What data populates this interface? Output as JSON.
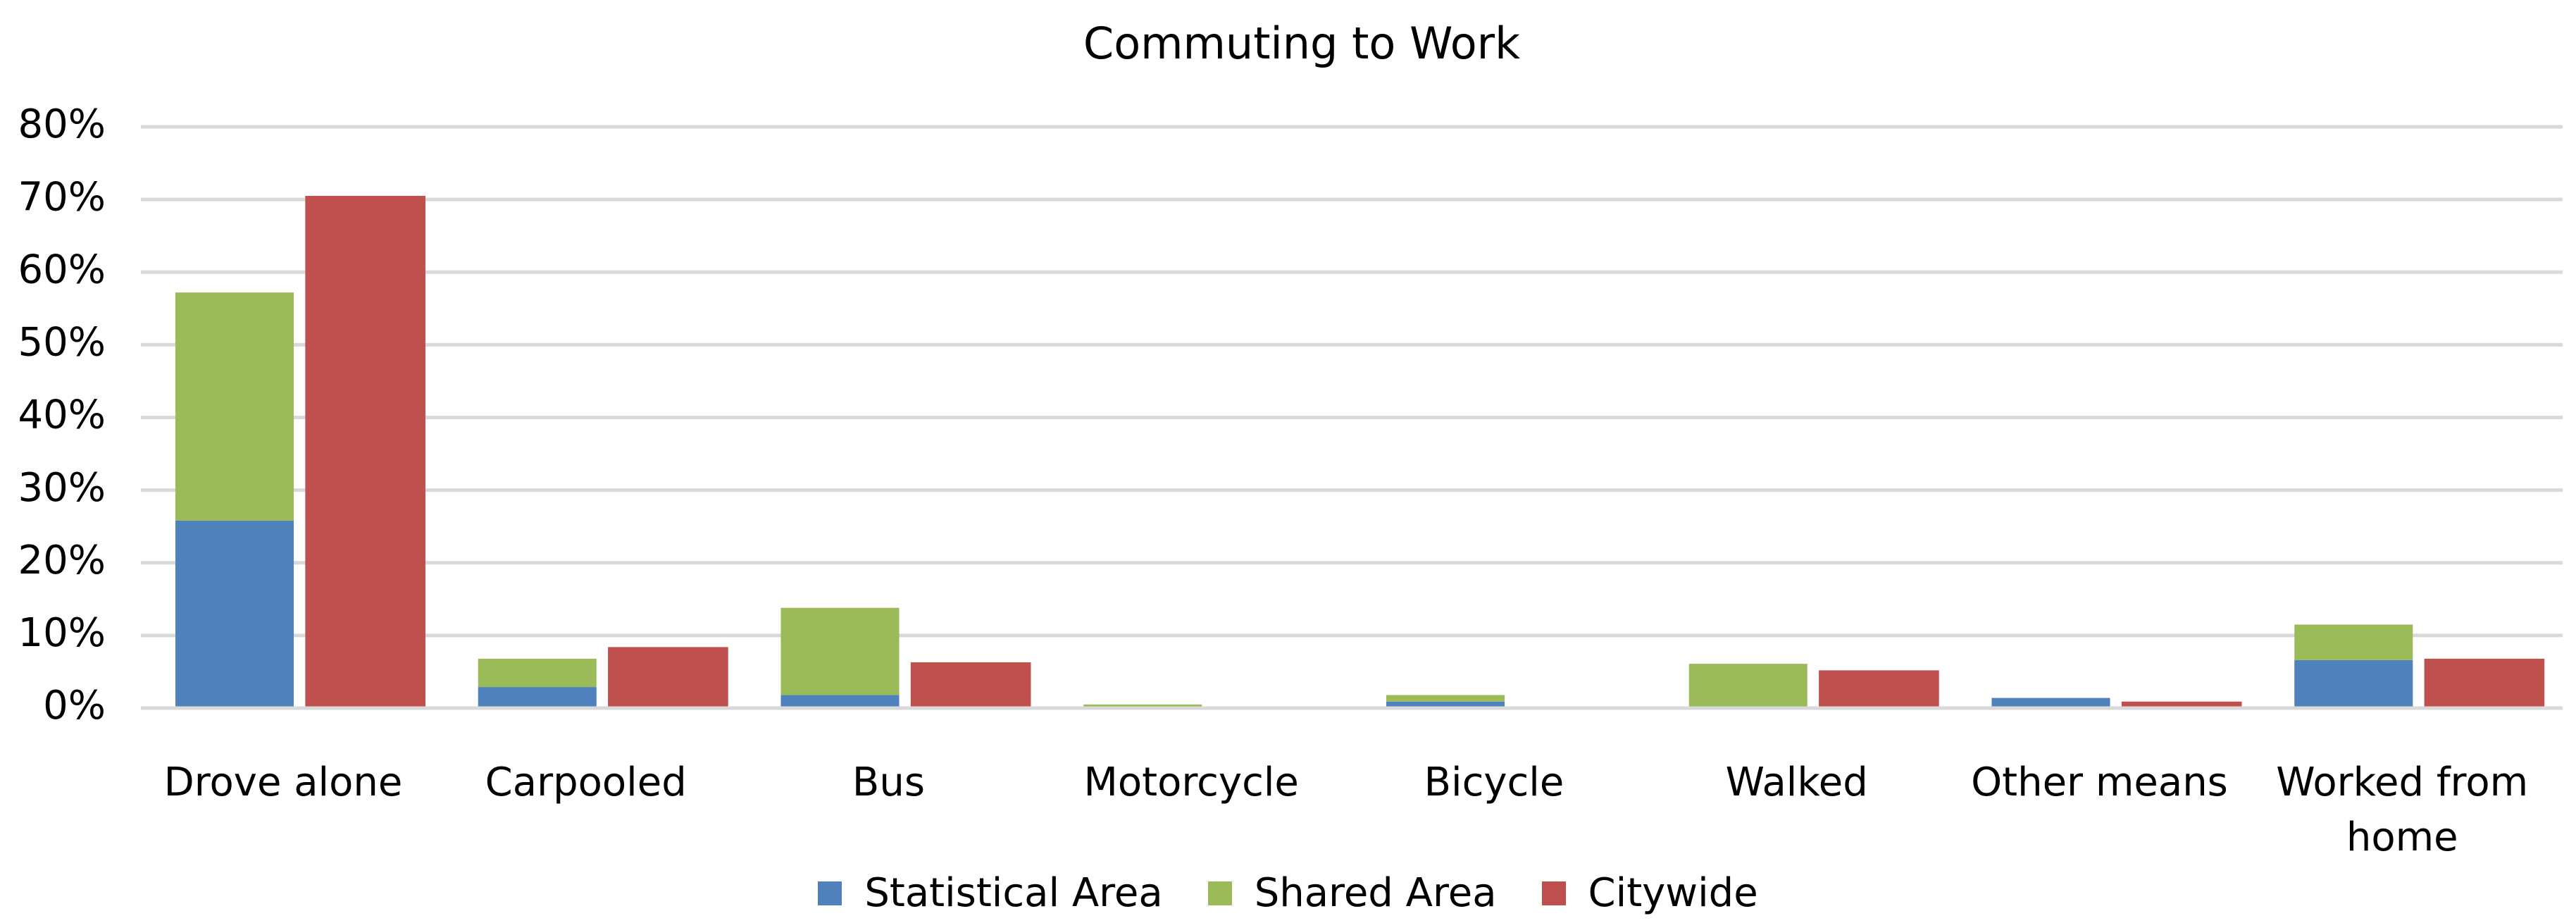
{
  "chart_data": {
    "type": "bar",
    "title": "Commuting to Work",
    "categories": [
      "Drove alone",
      "Carpooled",
      "Bus",
      "Motorcycle",
      "Bicycle",
      "Walked",
      "Other means",
      "Worked from home"
    ],
    "series": [
      {
        "name": "Statistical Area",
        "color": "#4f81bd",
        "stack": 0,
        "values": [
          25.8,
          2.9,
          1.8,
          0,
          0.9,
          0,
          1.4,
          6.6
        ]
      },
      {
        "name": "Shared Area",
        "color": "#9bbb59",
        "stack": 0,
        "values": [
          31.4,
          3.9,
          12.0,
          0.5,
          0.9,
          6.1,
          0,
          4.9
        ]
      },
      {
        "name": "Citywide",
        "color": "#c0504d",
        "stack": 1,
        "values": [
          70.5,
          8.4,
          6.3,
          0,
          0,
          5.2,
          0.9,
          6.8
        ]
      }
    ],
    "ylim": [
      0,
      80
    ],
    "yticks": [
      {
        "value": 0,
        "label": "0%"
      },
      {
        "value": 10,
        "label": "10%"
      },
      {
        "value": 20,
        "label": "20%"
      },
      {
        "value": 30,
        "label": "30%"
      },
      {
        "value": 40,
        "label": "40%"
      },
      {
        "value": 50,
        "label": "50%"
      },
      {
        "value": 60,
        "label": "60%"
      },
      {
        "value": 70,
        "label": "70%"
      },
      {
        "value": 80,
        "label": "80%"
      }
    ],
    "grid": true,
    "legend": "bottom"
  }
}
